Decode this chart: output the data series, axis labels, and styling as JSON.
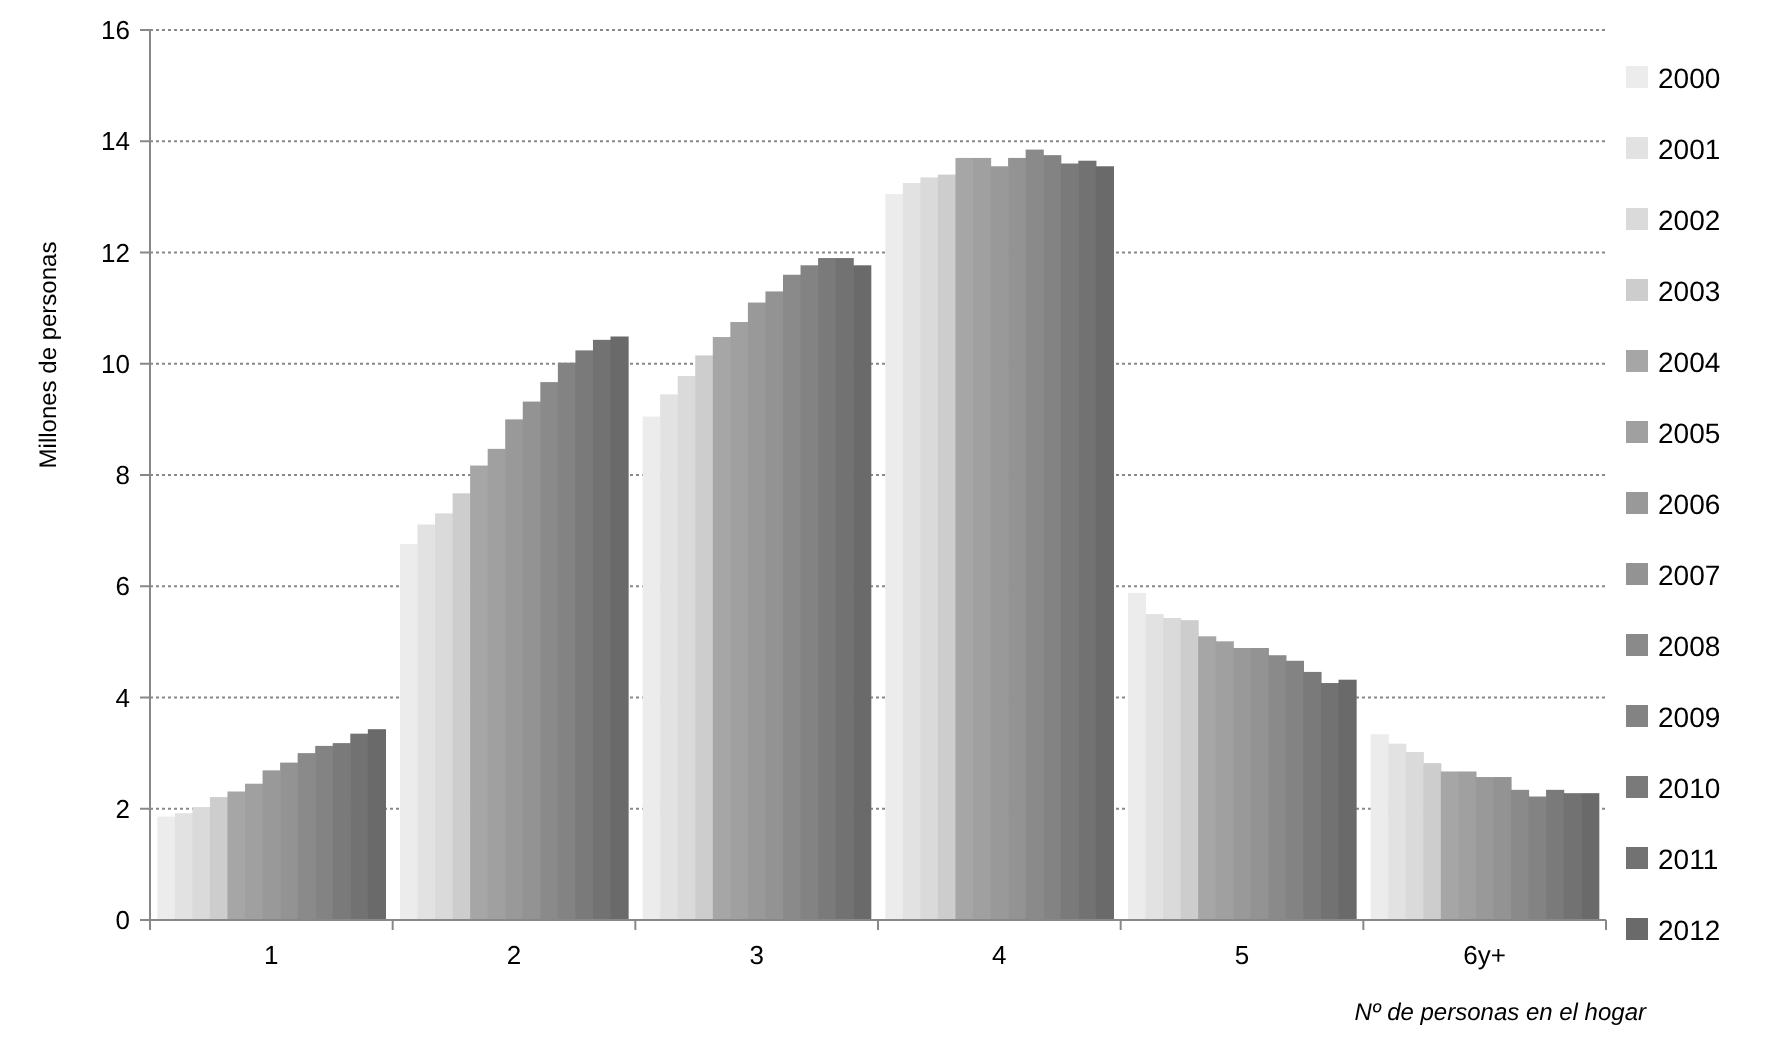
{
  "chart_data": {
    "type": "bar",
    "xlabel": "Nº de personas en el hogar",
    "ylabel": "Millones de personas",
    "categories": [
      "1",
      "2",
      "3",
      "4",
      "5",
      "6y+"
    ],
    "ylim": [
      0,
      16
    ],
    "yticks": [
      0,
      2,
      4,
      6,
      8,
      10,
      12,
      14,
      16
    ],
    "grid": "y",
    "legend": "right",
    "series": [
      {
        "name": "2000",
        "color": "#ececec",
        "values": [
          1.86,
          6.76,
          9.05,
          13.05,
          5.88,
          3.34
        ]
      },
      {
        "name": "2001",
        "color": "#e2e2e2",
        "values": [
          1.92,
          7.11,
          9.45,
          13.25,
          5.5,
          3.17
        ]
      },
      {
        "name": "2002",
        "color": "#dadada",
        "values": [
          2.03,
          7.31,
          9.78,
          13.35,
          5.43,
          3.02
        ]
      },
      {
        "name": "2003",
        "color": "#cdcdcd",
        "values": [
          2.21,
          7.67,
          10.15,
          13.4,
          5.39,
          2.82
        ]
      },
      {
        "name": "2004",
        "color": "#a6a6a6",
        "values": [
          2.31,
          8.17,
          10.48,
          13.7,
          5.1,
          2.67
        ]
      },
      {
        "name": "2005",
        "color": "#a0a0a0",
        "values": [
          2.45,
          8.47,
          10.75,
          13.7,
          5.01,
          2.67
        ]
      },
      {
        "name": "2006",
        "color": "#999999",
        "values": [
          2.69,
          9.0,
          11.1,
          13.55,
          4.89,
          2.57
        ]
      },
      {
        "name": "2007",
        "color": "#939393",
        "values": [
          2.83,
          9.32,
          11.3,
          13.7,
          4.89,
          2.57
        ]
      },
      {
        "name": "2008",
        "color": "#8a8a8a",
        "values": [
          3.0,
          9.67,
          11.6,
          13.85,
          4.76,
          2.34
        ]
      },
      {
        "name": "2009",
        "color": "#838383",
        "values": [
          3.13,
          10.02,
          11.77,
          13.75,
          4.66,
          2.22
        ]
      },
      {
        "name": "2010",
        "color": "#7a7a7a",
        "values": [
          3.18,
          10.24,
          11.9,
          13.6,
          4.46,
          2.34
        ]
      },
      {
        "name": "2011",
        "color": "#727272",
        "values": [
          3.35,
          10.43,
          11.9,
          13.65,
          4.26,
          2.28
        ]
      },
      {
        "name": "2012",
        "color": "#6a6a6a",
        "values": [
          3.43,
          10.49,
          11.77,
          13.55,
          4.32,
          2.28
        ]
      }
    ]
  }
}
